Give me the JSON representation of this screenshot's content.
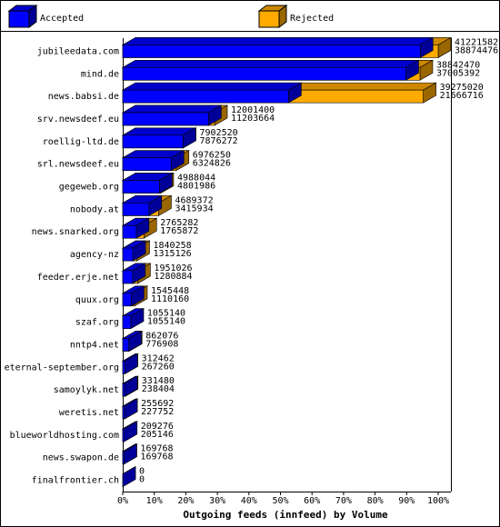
{
  "chart_data": {
    "type": "bar",
    "orientation": "horizontal",
    "title": "Outgoing feeds (innfeed) by Volume",
    "categories": [
      "jubileedata.com",
      "mind.de",
      "news.babsi.de",
      "srv.newsdeef.eu",
      "roellig-ltd.de",
      "srl.newsdeef.eu",
      "gegeweb.org",
      "nobody.at",
      "news.snarked.org",
      "agency-nz",
      "feeder.erje.net",
      "quux.org",
      "szaf.org",
      "nntp4.net",
      "eternal-september.org",
      "samoylyk.net",
      "weretis.net",
      "blueworldhosting.com",
      "news.swapon.de",
      "finalfrontier.ch"
    ],
    "series": [
      {
        "name": "Accepted",
        "color": "#0000ff",
        "values": [
          38874476,
          37005392,
          21666716,
          11203664,
          7876272,
          6324826,
          4801986,
          3415934,
          1765872,
          1315126,
          1280884,
          1110160,
          1055140,
          776908,
          267260,
          238404,
          227752,
          205146,
          169768,
          0
        ]
      },
      {
        "name": "Rejected",
        "color": "#ffaa00",
        "values": [
          41221582,
          38842470,
          39275020,
          12001400,
          7902520,
          6976250,
          4988044,
          4689372,
          2765282,
          1840258,
          1951026,
          1545448,
          1055140,
          862076,
          312462,
          331480,
          255692,
          209276,
          169768,
          0
        ]
      }
    ],
    "xlim": [
      0,
      41221582
    ],
    "xticks": [
      {
        "value": 0,
        "label": "0%"
      },
      {
        "value": 4122158.2,
        "label": "10%"
      },
      {
        "value": 8244316.4,
        "label": "20%"
      },
      {
        "value": 12366474.6,
        "label": "30%"
      },
      {
        "value": 16488632.8,
        "label": "40%"
      },
      {
        "value": 20610791,
        "label": "50%"
      },
      {
        "value": 24732949.2,
        "label": "60%"
      },
      {
        "value": 28855107.4,
        "label": "70%"
      },
      {
        "value": 32977265.6,
        "label": "80%"
      },
      {
        "value": 37099423.8,
        "label": "90%"
      },
      {
        "value": 41221582,
        "label": "100%"
      }
    ]
  }
}
